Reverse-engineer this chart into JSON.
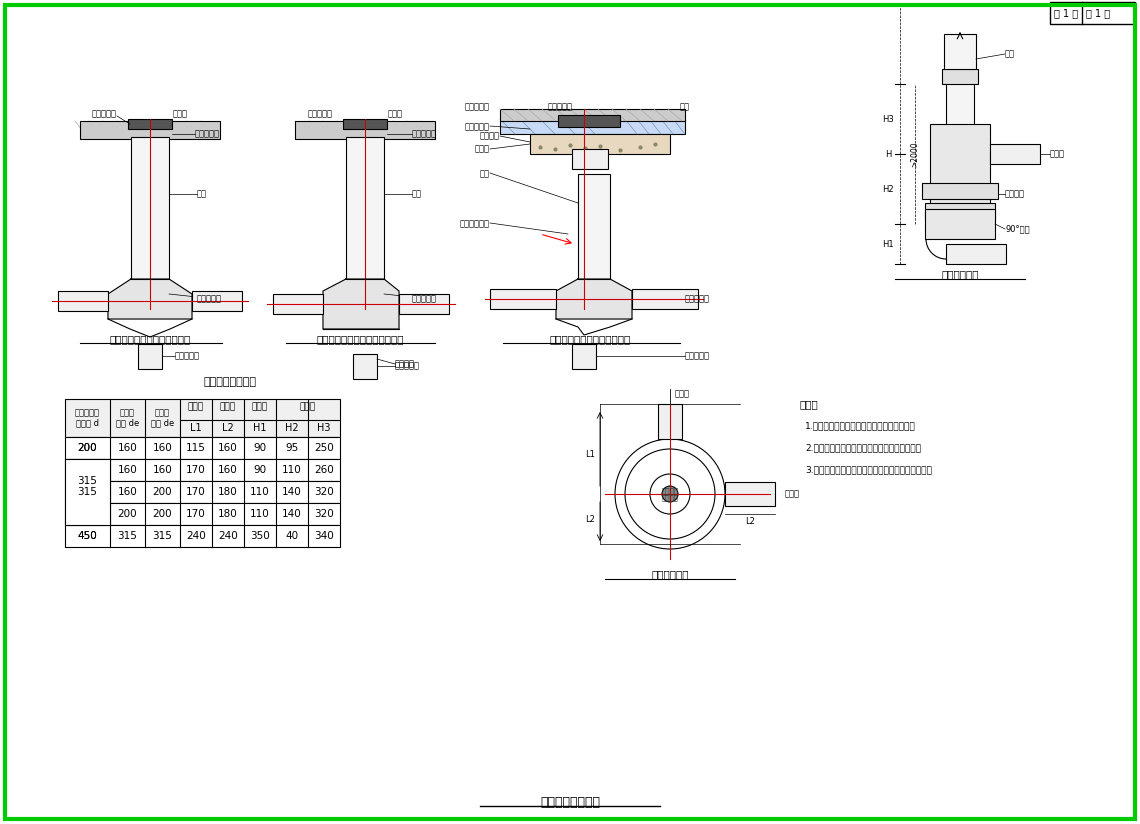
{
  "title": "塑料检查井大样图",
  "page_text": "第 1 页  共 1 页",
  "bg_color": "#ffffff",
  "border_color": "#00cc00",
  "line_color": "#000000",
  "red_line_color": "#cc0000",
  "green_line_color": "#00aa00",
  "table_title": "跌水井主要尺寸表",
  "table_headers": [
    "井座连接井\n筒外径 d",
    "汇入管\n管径 de",
    "流出管\n管径 de",
    "井座长\nL1",
    "弯头长\nL2",
    "弯头高\nH1",
    "H2",
    "H3"
  ],
  "table_data": [
    [
      "200",
      "160",
      "160",
      "115",
      "160",
      "90",
      "95",
      "250"
    ],
    [
      "315",
      "160",
      "160",
      "170",
      "160",
      "90",
      "110",
      "260"
    ],
    [
      "315",
      "160",
      "200",
      "170",
      "180",
      "110",
      "140",
      "320"
    ],
    [
      "315",
      "200",
      "200",
      "170",
      "180",
      "110",
      "140",
      "320"
    ],
    [
      "450",
      "315",
      "315",
      "240",
      "240",
      "350",
      "40",
      "340"
    ]
  ],
  "diagram1_title": "非防护井盖检查井（有流槽）",
  "diagram2_title": "非防护井盖检查井（有沉泥室）",
  "diagram3_title": "有防护井盖检查井（有流槽）",
  "diagram4_title": "跌水井立面图",
  "diagram5_title": "跌水井平面图",
  "notes_title": "说明：",
  "notes": [
    "1.非防护井盖检查井也可配置井筒连接配件，",
    "2.有防护盖座检查井也可采用有沉泥室的井座，",
    "3.当井筒高度允许时，井筒接管配件也可多层设置，"
  ]
}
